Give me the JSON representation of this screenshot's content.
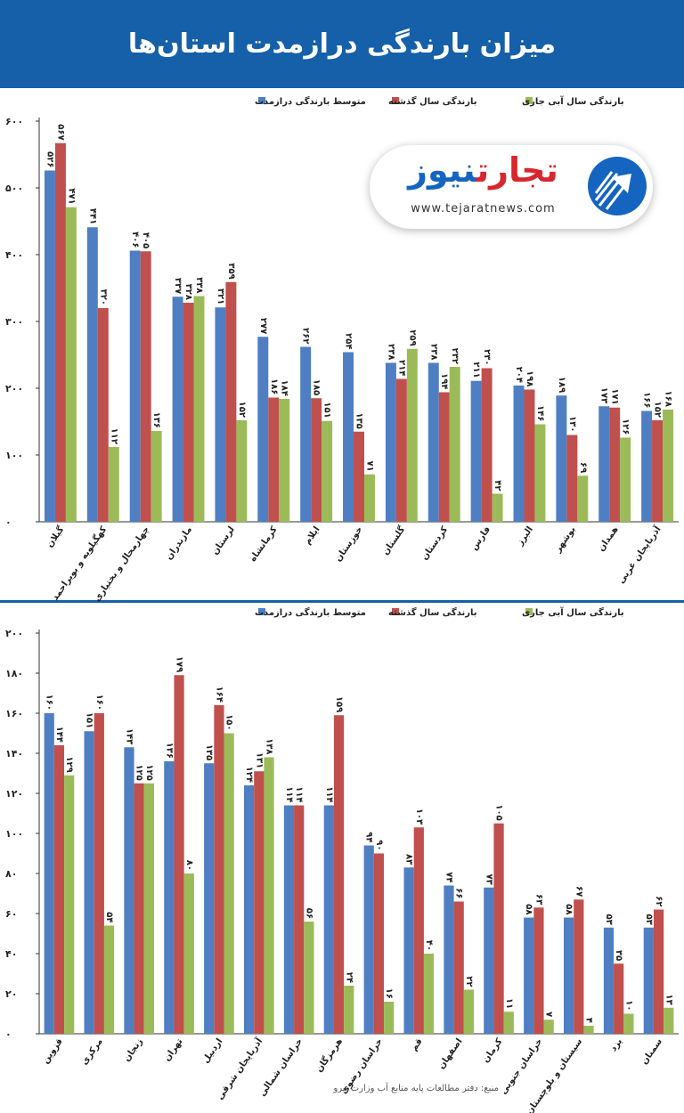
{
  "header": {
    "title": "میزان بارندگی درازمدت استان‌ها"
  },
  "logo": {
    "word1": "تجارت",
    "word2": "نیوز",
    "url": "www.tejaratnews.com"
  },
  "source": "منبع: دفتر مطالعات پایه منابع آب وزارت نیرو",
  "colors": {
    "series1": "#4f7fc2",
    "series2": "#c0504d",
    "series3": "#9bbb59",
    "header": "#1560a8"
  },
  "chart_data": [
    {
      "type": "bar",
      "ylim": [
        0,
        600
      ],
      "yticks": [
        "۰",
        "۱۰۰",
        "۲۰۰",
        "۳۰۰",
        "۴۰۰",
        "۵۰۰",
        "۶۰۰"
      ],
      "legend": [
        "متوسط بارندگی درازمدت",
        "بارندگی سال گذشته",
        "بارندگی سال آبی جاری"
      ],
      "categories": [
        "گیلان",
        "کهگیلویه و بویراحمد",
        "چهارمحال و بختیاری",
        "مازندران",
        "لرستان",
        "کرمانشاه",
        "ایلام",
        "خوزستان",
        "گلستان",
        "کردستان",
        "فارس",
        "البرز",
        "بوشهر",
        "همدان",
        "آذربایجان غربی"
      ],
      "series": [
        {
          "name": "متوسط بارندگی درازمدت",
          "values": [
            526,
            441,
            406,
            337,
            321,
            277,
            262,
            254,
            238,
            238,
            211,
            204,
            189,
            173,
            166
          ],
          "labels": [
            "۵۲۶",
            "۴۴۱",
            "۴۰۶",
            "۳۳۷",
            "۳۲۱",
            "۲۷۷",
            "۲۶۲",
            "۲۵۴",
            "۲۳۸",
            "۲۳۸",
            "۲۱۱",
            "۲۰۴",
            "۱۸۹",
            "۱۷۳",
            "۱۶۶"
          ]
        },
        {
          "name": "بارندگی سال گذشته",
          "values": [
            567,
            320,
            405,
            328,
            359,
            186,
            185,
            135,
            214,
            194,
            230,
            198,
            130,
            171,
            152
          ],
          "labels": [
            "۵۶۷",
            "۳۲۰",
            "۴۰۵",
            "۳۲۸",
            "۳۵۹",
            "۱۸۶",
            "۱۸۵",
            "۱۳۵",
            "۲۱۴",
            "۱۹۴",
            "۲۳۰",
            "۱۹۸",
            "۱۳۰",
            "۱۷۱",
            "۱۵۲"
          ]
        },
        {
          "name": "بارندگی سال آبی جاری",
          "values": [
            471,
            112,
            136,
            338,
            152,
            184,
            151,
            71,
            259,
            232,
            42,
            146,
            69,
            126,
            168
          ],
          "labels": [
            "۴۷۱",
            "۱۱۲",
            "۱۳۶",
            "۳۳۸",
            "۱۵۲",
            "۱۸۴",
            "۱۵۱",
            "۷۱",
            "۲۵۹",
            "۲۳۲",
            "۴۲",
            "۱۴۶",
            "۶۹",
            "۱۲۶",
            "۱۶۸"
          ]
        }
      ]
    },
    {
      "type": "bar",
      "ylim": [
        0,
        200
      ],
      "yticks": [
        "۰",
        "۲۰",
        "۴۰",
        "۶۰",
        "۸۰",
        "۱۰۰",
        "۱۲۰",
        "۱۴۰",
        "۱۶۰",
        "۱۸۰",
        "۲۰۰"
      ],
      "legend": [
        "متوسط بارندگی درازمدت",
        "بارندگی سال گذشته",
        "بارندگی سال آبی جاری"
      ],
      "categories": [
        "قزوین",
        "مرکزی",
        "زنجان",
        "تهران",
        "اردبیل",
        "آذربایجان شرقی",
        "خراسان شمالی",
        "هرمزگان",
        "خراسان رضوی",
        "قم",
        "اصفهان",
        "کرمان",
        "خراسان جنوبی",
        "سیستان و بلوچستان",
        "یزد",
        "سمنان"
      ],
      "series": [
        {
          "name": "متوسط بارندگی درازمدت",
          "values": [
            160,
            151,
            143,
            136,
            135,
            124,
            114,
            114,
            94,
            83,
            74,
            73,
            58,
            58,
            53,
            53
          ],
          "labels": [
            "۱۶۰",
            "۱۵۱",
            "۱۴۳",
            "۱۳۶",
            "۱۳۵",
            "۱۲۴",
            "۱۱۴",
            "۱۱۴",
            "۹۴",
            "۸۳",
            "۷۴",
            "۷۳",
            "۵۸",
            "۵۸",
            "۵۳",
            "۵۳"
          ]
        },
        {
          "name": "بارندگی سال گذشته",
          "values": [
            144,
            160,
            125,
            179,
            164,
            131,
            114,
            159,
            90,
            103,
            66,
            105,
            63,
            67,
            35,
            62
          ],
          "labels": [
            "۱۴۴",
            "۱۶۰",
            "۱۲۵",
            "۱۷۹",
            "۱۶۴",
            "۱۳۱",
            "۱۱۴",
            "۱۵۹",
            "۹۰",
            "۱۰۳",
            "۶۶",
            "۱۰۵",
            "۶۳",
            "۶۷",
            "۳۵",
            "۶۲"
          ]
        },
        {
          "name": "بارندگی سال آبی جاری",
          "values": [
            129,
            54,
            125,
            80,
            150,
            138,
            56,
            24,
            16,
            40,
            22,
            11,
            7,
            4,
            10,
            13
          ],
          "labels": [
            "۱۲۹",
            "۵۴",
            "۱۲۵",
            "۸۰",
            "۱۵۰",
            "۱۳۸",
            "۵۶",
            "۲۴",
            "۱۶",
            "۴۰",
            "۲۲",
            "۱۱",
            "۷",
            "۴",
            "۱۰",
            "۱۳"
          ]
        }
      ]
    }
  ]
}
